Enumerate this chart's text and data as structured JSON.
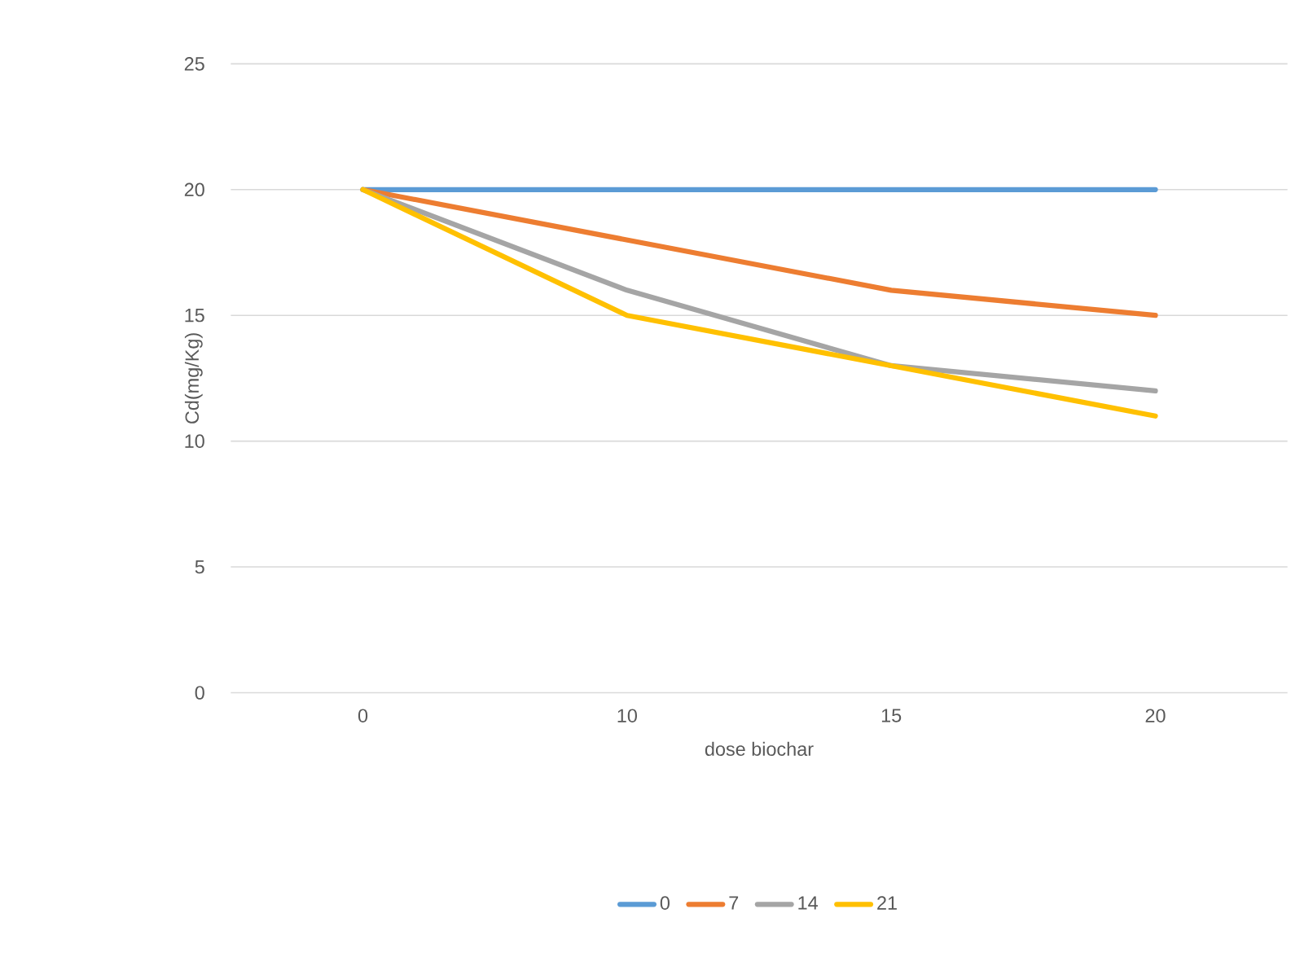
{
  "chart_data": {
    "type": "line",
    "xlabel": "dose biochar",
    "ylabel": "Cd(mg/Kg)",
    "categories": [
      "0",
      "10",
      "15",
      "20"
    ],
    "series": [
      {
        "name": "0",
        "color": "#5b9bd5",
        "values": [
          20,
          20,
          20,
          20
        ]
      },
      {
        "name": "7",
        "color": "#ed7d31",
        "values": [
          20,
          18,
          16,
          15
        ]
      },
      {
        "name": "14",
        "color": "#a5a5a5",
        "values": [
          20,
          16,
          13,
          12
        ]
      },
      {
        "name": "21",
        "color": "#ffc000",
        "values": [
          20,
          15,
          13,
          11
        ]
      }
    ],
    "ylim": [
      0,
      25
    ],
    "yticks": [
      0,
      5,
      10,
      15,
      20,
      25
    ],
    "grid": "y",
    "legend": "bottom",
    "marker": "none",
    "line_style": "solid"
  }
}
